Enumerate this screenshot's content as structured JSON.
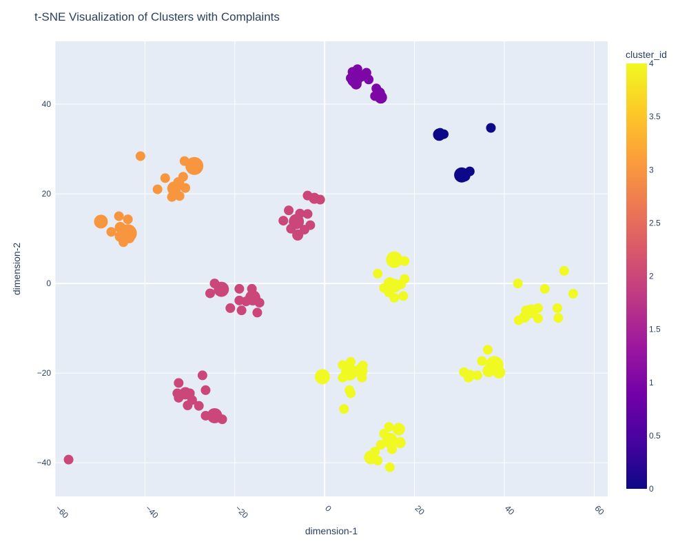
{
  "chart_data": {
    "type": "scatter",
    "title": "t-SNE Visualization of Clusters with Complaints",
    "xlabel": "dimension-1",
    "ylabel": "dimension-2",
    "xlim": [
      -60,
      63
    ],
    "ylim": [
      -47.5,
      54
    ],
    "xticks": [
      -60,
      -40,
      -20,
      0,
      20,
      40,
      60
    ],
    "yticks": [
      -40,
      -20,
      0,
      20,
      40
    ],
    "grid": true,
    "colorbar": {
      "title": "cluster_id",
      "min": 0,
      "max": 4,
      "ticks": [
        "0",
        "0.5",
        "1",
        "1.5",
        "2",
        "2.5",
        "3",
        "3.5",
        "4"
      ]
    },
    "colors": {
      "plot_bg": "#e5ecf6",
      "grid": "#ffffff",
      "text": "#2a3f5f",
      "colorscale": [
        "#0d0887",
        "#46039f",
        "#7201a8",
        "#9c179e",
        "#bd3786",
        "#d8576b",
        "#ed7953",
        "#fb9f3a",
        "#fdca26",
        "#f0f921"
      ]
    },
    "points": [
      {
        "x": 25.5,
        "y": 33.2,
        "s": 9,
        "c": 0
      },
      {
        "x": 26.5,
        "y": 33.3,
        "s": 7,
        "c": 0
      },
      {
        "x": 25.7,
        "y": 33.6,
        "s": 7,
        "c": 0
      },
      {
        "x": 37.0,
        "y": 34.7,
        "s": 7,
        "c": 0
      },
      {
        "x": 30.5,
        "y": 24.2,
        "s": 11,
        "c": 0
      },
      {
        "x": 31.2,
        "y": 24.0,
        "s": 8,
        "c": 0
      },
      {
        "x": 32.3,
        "y": 25.0,
        "s": 7,
        "c": 0
      },
      {
        "x": 6.7,
        "y": 45.5,
        "s": 11,
        "c": 1
      },
      {
        "x": 6.2,
        "y": 47.2,
        "s": 7,
        "c": 1
      },
      {
        "x": 7.3,
        "y": 47.8,
        "s": 7,
        "c": 1
      },
      {
        "x": 8.0,
        "y": 46.2,
        "s": 8,
        "c": 1
      },
      {
        "x": 9.3,
        "y": 47.0,
        "s": 7,
        "c": 1
      },
      {
        "x": 9.8,
        "y": 45.5,
        "s": 7,
        "c": 1
      },
      {
        "x": 7.0,
        "y": 44.5,
        "s": 8,
        "c": 1
      },
      {
        "x": 5.8,
        "y": 45.8,
        "s": 7,
        "c": 1
      },
      {
        "x": 11.5,
        "y": 43.5,
        "s": 7,
        "c": 1
      },
      {
        "x": 12.2,
        "y": 42.5,
        "s": 8,
        "c": 1
      },
      {
        "x": 11.2,
        "y": 41.8,
        "s": 7,
        "c": 1
      },
      {
        "x": 12.5,
        "y": 41.5,
        "s": 9,
        "c": 1
      },
      {
        "x": -6.3,
        "y": 13.8,
        "s": 11,
        "c": 2
      },
      {
        "x": -8.0,
        "y": 16.3,
        "s": 7,
        "c": 2
      },
      {
        "x": -9.2,
        "y": 14.0,
        "s": 7,
        "c": 2
      },
      {
        "x": -7.5,
        "y": 12.2,
        "s": 7,
        "c": 2
      },
      {
        "x": -6.0,
        "y": 10.8,
        "s": 8,
        "c": 2
      },
      {
        "x": -4.5,
        "y": 12.0,
        "s": 7,
        "c": 2
      },
      {
        "x": -3.2,
        "y": 13.0,
        "s": 7,
        "c": 2
      },
      {
        "x": -3.8,
        "y": 15.5,
        "s": 7,
        "c": 2
      },
      {
        "x": -5.5,
        "y": 15.6,
        "s": 7,
        "c": 2
      },
      {
        "x": -3.8,
        "y": 19.6,
        "s": 7,
        "c": 2
      },
      {
        "x": -2.3,
        "y": 19.0,
        "s": 8,
        "c": 2
      },
      {
        "x": -1.0,
        "y": 18.7,
        "s": 7,
        "c": 2
      },
      {
        "x": -23.0,
        "y": -1.3,
        "s": 11,
        "c": 2
      },
      {
        "x": -25.5,
        "y": -2.2,
        "s": 7,
        "c": 2
      },
      {
        "x": -24.5,
        "y": 0.0,
        "s": 7,
        "c": 2
      },
      {
        "x": -16.0,
        "y": -3.2,
        "s": 11,
        "c": 2
      },
      {
        "x": -19.0,
        "y": -1.2,
        "s": 7,
        "c": 2
      },
      {
        "x": -16.2,
        "y": -1.2,
        "s": 7,
        "c": 2
      },
      {
        "x": -14.5,
        "y": -4.3,
        "s": 7,
        "c": 2
      },
      {
        "x": -15.0,
        "y": -6.5,
        "s": 7,
        "c": 2
      },
      {
        "x": -18.5,
        "y": -6.0,
        "s": 7,
        "c": 2
      },
      {
        "x": -21.0,
        "y": -5.5,
        "s": 7,
        "c": 2
      },
      {
        "x": -19.0,
        "y": -3.8,
        "s": 7,
        "c": 2
      },
      {
        "x": -17.5,
        "y": -4.0,
        "s": 7,
        "c": 2
      },
      {
        "x": -31.0,
        "y": -24.5,
        "s": 9,
        "c": 2
      },
      {
        "x": -32.5,
        "y": -22.2,
        "s": 7,
        "c": 2
      },
      {
        "x": -32.8,
        "y": -24.5,
        "s": 7,
        "c": 2
      },
      {
        "x": -32.5,
        "y": -25.5,
        "s": 7,
        "c": 2
      },
      {
        "x": -30.0,
        "y": -24.5,
        "s": 7,
        "c": 2
      },
      {
        "x": -30.5,
        "y": -27.2,
        "s": 7,
        "c": 2
      },
      {
        "x": -29.5,
        "y": -26.0,
        "s": 7,
        "c": 2
      },
      {
        "x": -28.0,
        "y": -27.3,
        "s": 7,
        "c": 2
      },
      {
        "x": -27.2,
        "y": -20.5,
        "s": 7,
        "c": 2
      },
      {
        "x": -26.5,
        "y": -23.8,
        "s": 7,
        "c": 2
      },
      {
        "x": -24.5,
        "y": -29.5,
        "s": 11,
        "c": 2
      },
      {
        "x": -26.5,
        "y": -29.5,
        "s": 7,
        "c": 2
      },
      {
        "x": -22.8,
        "y": -30.3,
        "s": 7,
        "c": 2
      },
      {
        "x": -57.0,
        "y": -39.3,
        "s": 7,
        "c": 2
      },
      {
        "x": -43.8,
        "y": 11.2,
        "s": 13,
        "c": 3
      },
      {
        "x": -45.5,
        "y": 12.5,
        "s": 8,
        "c": 3
      },
      {
        "x": -45.8,
        "y": 15.0,
        "s": 7,
        "c": 3
      },
      {
        "x": -43.8,
        "y": 14.3,
        "s": 7,
        "c": 3
      },
      {
        "x": -47.5,
        "y": 11.5,
        "s": 7,
        "c": 3
      },
      {
        "x": -49.8,
        "y": 13.8,
        "s": 10,
        "c": 3
      },
      {
        "x": -44.8,
        "y": 9.2,
        "s": 7,
        "c": 3
      },
      {
        "x": -43.5,
        "y": 10.2,
        "s": 8,
        "c": 3
      },
      {
        "x": -45.5,
        "y": 10.5,
        "s": 8,
        "c": 3
      },
      {
        "x": -41.0,
        "y": 28.4,
        "s": 7,
        "c": 3
      },
      {
        "x": -29.0,
        "y": 26.2,
        "s": 13,
        "c": 3
      },
      {
        "x": -31.2,
        "y": 27.3,
        "s": 7,
        "c": 3
      },
      {
        "x": -35.5,
        "y": 23.5,
        "s": 7,
        "c": 3
      },
      {
        "x": -37.2,
        "y": 21.0,
        "s": 7,
        "c": 3
      },
      {
        "x": -33.5,
        "y": 21.2,
        "s": 10,
        "c": 3
      },
      {
        "x": -32.5,
        "y": 22.5,
        "s": 8,
        "c": 3
      },
      {
        "x": -31.5,
        "y": 23.8,
        "s": 7,
        "c": 3
      },
      {
        "x": -31.0,
        "y": 21.3,
        "s": 7,
        "c": 3
      },
      {
        "x": -34.0,
        "y": 19.3,
        "s": 7,
        "c": 3
      },
      {
        "x": -32.3,
        "y": 19.5,
        "s": 7,
        "c": 3
      },
      {
        "x": 15.5,
        "y": 5.3,
        "s": 12,
        "c": 4
      },
      {
        "x": 17.8,
        "y": 5.0,
        "s": 7,
        "c": 4
      },
      {
        "x": 11.8,
        "y": 2.2,
        "s": 7,
        "c": 4
      },
      {
        "x": 14.5,
        "y": 0.0,
        "s": 9,
        "c": 4
      },
      {
        "x": 15.5,
        "y": -0.5,
        "s": 10,
        "c": 4
      },
      {
        "x": 13.2,
        "y": -1.0,
        "s": 7,
        "c": 4
      },
      {
        "x": 17.0,
        "y": -0.2,
        "s": 7,
        "c": 4
      },
      {
        "x": 17.8,
        "y": 1.0,
        "s": 7,
        "c": 4
      },
      {
        "x": 14.3,
        "y": -2.0,
        "s": 7,
        "c": 4
      },
      {
        "x": 15.5,
        "y": -3.2,
        "s": 7,
        "c": 4
      },
      {
        "x": 17.5,
        "y": -2.8,
        "s": 7,
        "c": 4
      },
      {
        "x": 43.0,
        "y": 0.0,
        "s": 7,
        "c": 4
      },
      {
        "x": 49.0,
        "y": -1.2,
        "s": 7,
        "c": 4
      },
      {
        "x": 53.3,
        "y": 2.8,
        "s": 7,
        "c": 4
      },
      {
        "x": 55.3,
        "y": -2.3,
        "s": 7,
        "c": 4
      },
      {
        "x": 46.0,
        "y": -6.2,
        "s": 10,
        "c": 4
      },
      {
        "x": 44.8,
        "y": -6.0,
        "s": 7,
        "c": 4
      },
      {
        "x": 47.5,
        "y": -5.5,
        "s": 7,
        "c": 4
      },
      {
        "x": 44.5,
        "y": -7.5,
        "s": 8,
        "c": 4
      },
      {
        "x": 43.2,
        "y": -8.2,
        "s": 7,
        "c": 4
      },
      {
        "x": 47.5,
        "y": -7.8,
        "s": 7,
        "c": 4
      },
      {
        "x": 51.8,
        "y": -5.5,
        "s": 7,
        "c": 4
      },
      {
        "x": 52.0,
        "y": -7.7,
        "s": 7,
        "c": 4
      },
      {
        "x": -0.5,
        "y": -20.8,
        "s": 11,
        "c": 4
      },
      {
        "x": 5.5,
        "y": -19.8,
        "s": 12,
        "c": 4
      },
      {
        "x": 4.0,
        "y": -18.2,
        "s": 7,
        "c": 4
      },
      {
        "x": 5.8,
        "y": -17.5,
        "s": 7,
        "c": 4
      },
      {
        "x": 8.0,
        "y": -19.5,
        "s": 10,
        "c": 4
      },
      {
        "x": 8.5,
        "y": -18.3,
        "s": 7,
        "c": 4
      },
      {
        "x": 4.0,
        "y": -21.0,
        "s": 7,
        "c": 4
      },
      {
        "x": 8.3,
        "y": -21.0,
        "s": 7,
        "c": 4
      },
      {
        "x": 5.5,
        "y": -23.8,
        "s": 7,
        "c": 4
      },
      {
        "x": 5.8,
        "y": -24.5,
        "s": 7,
        "c": 4
      },
      {
        "x": 4.3,
        "y": -28.0,
        "s": 7,
        "c": 4
      },
      {
        "x": 37.8,
        "y": -18.2,
        "s": 13,
        "c": 4
      },
      {
        "x": 36.3,
        "y": -14.8,
        "s": 7,
        "c": 4
      },
      {
        "x": 35.0,
        "y": -17.3,
        "s": 7,
        "c": 4
      },
      {
        "x": 36.5,
        "y": -19.5,
        "s": 9,
        "c": 4
      },
      {
        "x": 38.8,
        "y": -19.8,
        "s": 9,
        "c": 4
      },
      {
        "x": 31.0,
        "y": -19.8,
        "s": 7,
        "c": 4
      },
      {
        "x": 32.3,
        "y": -20.5,
        "s": 8,
        "c": 4
      },
      {
        "x": 34.0,
        "y": -20.5,
        "s": 7,
        "c": 4
      },
      {
        "x": 32.0,
        "y": -21.0,
        "s": 7,
        "c": 4
      },
      {
        "x": 14.5,
        "y": -35.0,
        "s": 11,
        "c": 4
      },
      {
        "x": 16.5,
        "y": -32.5,
        "s": 9,
        "c": 4
      },
      {
        "x": 14.3,
        "y": -32.0,
        "s": 7,
        "c": 4
      },
      {
        "x": 13.2,
        "y": -33.5,
        "s": 7,
        "c": 4
      },
      {
        "x": 16.8,
        "y": -35.5,
        "s": 8,
        "c": 4
      },
      {
        "x": 15.0,
        "y": -37.0,
        "s": 7,
        "c": 4
      },
      {
        "x": 12.5,
        "y": -36.0,
        "s": 7,
        "c": 4
      },
      {
        "x": 10.3,
        "y": -38.8,
        "s": 10,
        "c": 4
      },
      {
        "x": 11.2,
        "y": -37.5,
        "s": 7,
        "c": 4
      },
      {
        "x": 11.8,
        "y": -39.5,
        "s": 7,
        "c": 4
      },
      {
        "x": 14.5,
        "y": -41.0,
        "s": 7,
        "c": 4
      }
    ]
  }
}
